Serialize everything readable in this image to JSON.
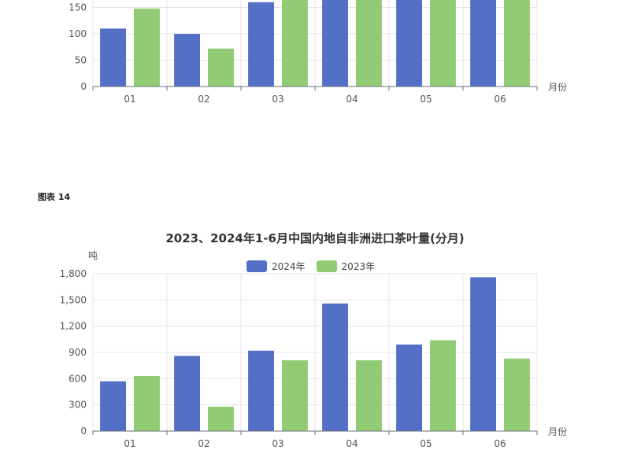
{
  "colors": {
    "series_2024": "#5470c6",
    "series_2023": "#91cc75",
    "grid": "#e6e6e6",
    "axis": "#6e7079"
  },
  "chart_data": [
    {
      "type": "bar",
      "title": "",
      "xlabel": "月份",
      "ylabel": "",
      "categories": [
        "01",
        "02",
        "03",
        "04",
        "05",
        "06"
      ],
      "ylim": [
        0,
        200
      ],
      "yticks": [
        0,
        50,
        100,
        150
      ],
      "series": [
        {
          "values": [
            110,
            100,
            160,
            200,
            200,
            200
          ]
        },
        {
          "values": [
            148,
            72,
            192,
            200,
            200,
            170
          ]
        }
      ]
    },
    {
      "type": "bar",
      "figure_label": "图表 14",
      "title": "2023、2024年1-6月中国内地自非洲进口茶叶量(分月)",
      "xlabel": "月份",
      "ylabel": "吨",
      "categories": [
        "01",
        "02",
        "03",
        "04",
        "05",
        "06"
      ],
      "ylim": [
        0,
        1800
      ],
      "yticks": [
        "0",
        "300",
        "600",
        "900",
        "1,200",
        "1,500",
        "1,800"
      ],
      "legend_position": "top",
      "series": [
        {
          "name": "2024年",
          "values": [
            570,
            860,
            920,
            1460,
            990,
            1760
          ]
        },
        {
          "name": "2023年",
          "values": [
            630,
            280,
            810,
            810,
            1040,
            830
          ]
        }
      ]
    }
  ]
}
